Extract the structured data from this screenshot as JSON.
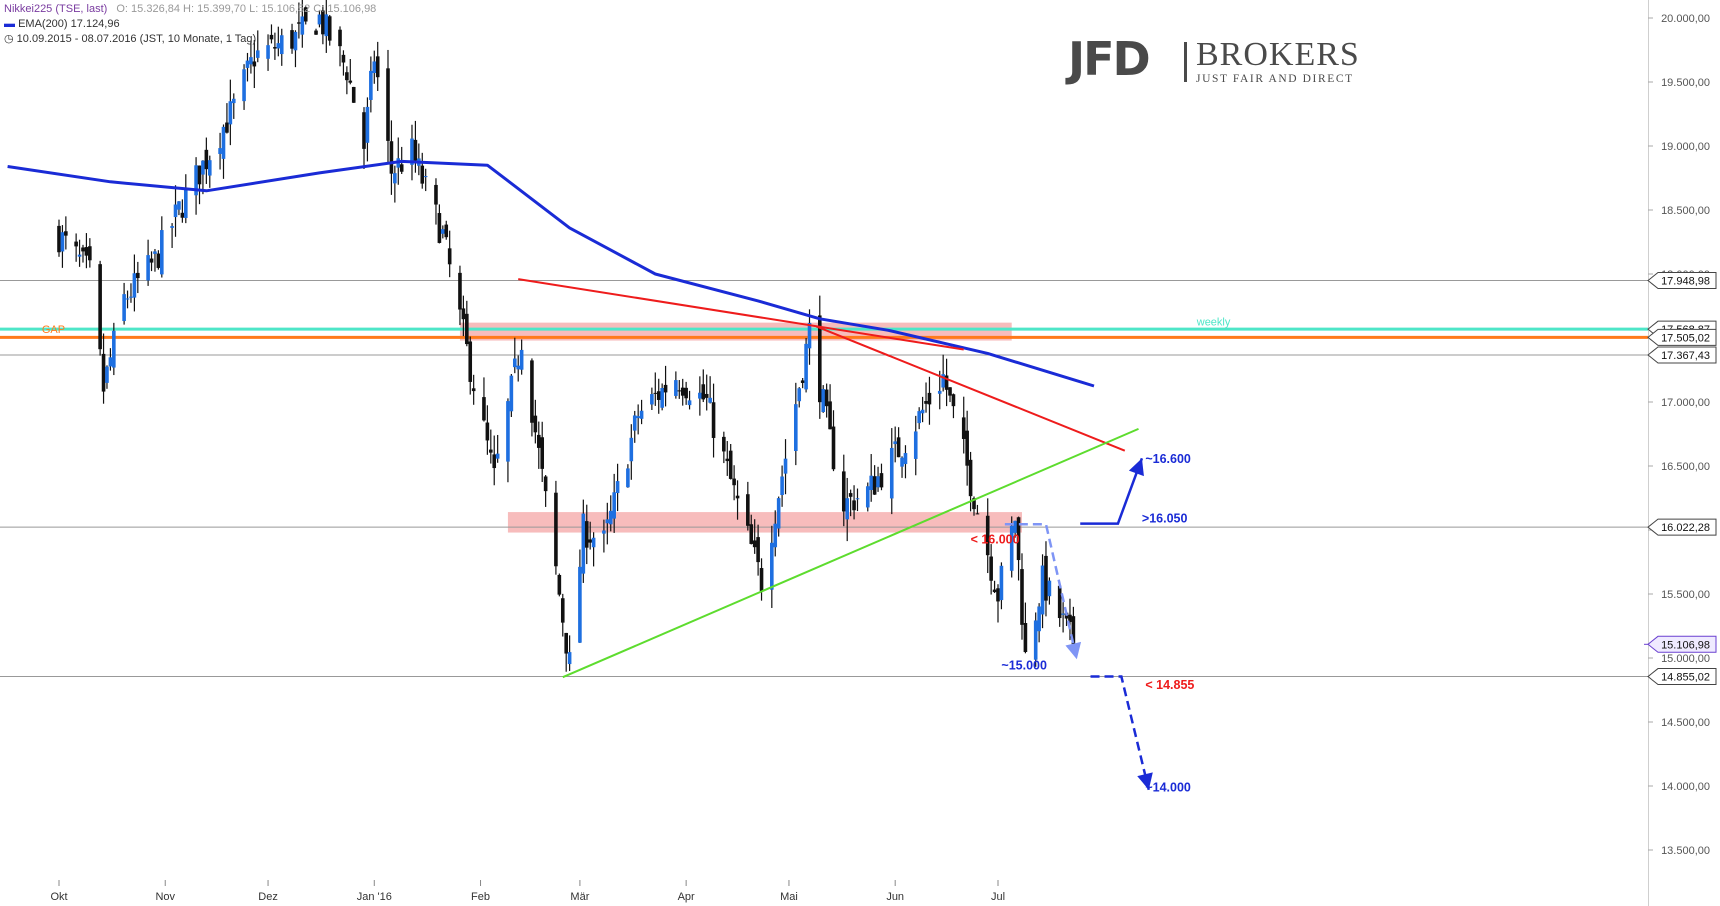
{
  "legend": {
    "instrument": "Nikkei225 (TSE, last)",
    "ohlc": "O: 15.326,84  H: 15.399,70  L: 15.106,52  C: 15.106,98",
    "ema_label": "EMA(200)",
    "ema_value": "17.124,96",
    "period": "10.09.2015 - 08.07.2016 (JST, 10 Monate, 1 Tag)"
  },
  "logo": {
    "jfd": "JFD",
    "brokers": "BROKERS",
    "tagline": "JUST FAIR AND DIRECT"
  },
  "colors": {
    "ema": "#1a2bd6",
    "trend_red": "#ee1c1c",
    "trend_green": "#5ddc2e",
    "zone_fill": "#f4a6a6",
    "weekly_line": "#4ee6c8",
    "gap_line": "#ff7a1a",
    "candle_up": "#1e6fe0",
    "candle_down": "#111111",
    "last_price": "#6a40d0"
  },
  "chart_data": {
    "type": "candlestick",
    "ylim": [
      13500,
      20100
    ],
    "y_ticks": [
      "13.500,00",
      "14.000,00",
      "14.500,00",
      "15.000,00",
      "15.500,00",
      "16.000,00",
      "16.500,00",
      "17.000,00",
      "17.500,00",
      "18.000,00",
      "18.500,00",
      "19.000,00",
      "19.500,00",
      "20.000,00"
    ],
    "y_tick_values": [
      13500,
      14000,
      14500,
      15000,
      15500,
      16000,
      16500,
      17000,
      17500,
      18000,
      18500,
      19000,
      19500,
      20000
    ],
    "x_ticks": [
      {
        "label": "Okt",
        "day": 15
      },
      {
        "label": "Nov",
        "day": 46
      },
      {
        "label": "Dez",
        "day": 76
      },
      {
        "label": "Jan '16",
        "day": 107
      },
      {
        "label": "Feb",
        "day": 138
      },
      {
        "label": "Mär",
        "day": 167
      },
      {
        "label": "Apr",
        "day": 198
      },
      {
        "label": "Mai",
        "day": 228
      },
      {
        "label": "Jun",
        "day": 259
      },
      {
        "label": "Jul",
        "day": 289
      }
    ],
    "date_range": [
      "2015-09-16",
      "2016-07-08"
    ],
    "anchors": [
      [
        "2015-09-16",
        18300
      ],
      [
        "2015-09-25",
        18000
      ],
      [
        "2015-09-29",
        17100
      ],
      [
        "2015-10-05",
        17800
      ],
      [
        "2015-10-14",
        18100
      ],
      [
        "2015-10-21",
        18500
      ],
      [
        "2015-10-29",
        18900
      ],
      [
        "2015-11-06",
        19300
      ],
      [
        "2015-11-12",
        19700
      ],
      [
        "2015-11-24",
        19850
      ],
      [
        "2015-12-01",
        20000
      ],
      [
        "2015-12-09",
        19600
      ],
      [
        "2015-12-14",
        19000
      ],
      [
        "2015-12-17",
        19700
      ],
      [
        "2015-12-22",
        18800
      ],
      [
        "2015-12-28",
        18950
      ],
      [
        "2016-01-06",
        18300
      ],
      [
        "2016-01-13",
        17400
      ],
      [
        "2016-01-21",
        16400
      ],
      [
        "2016-01-29",
        17500
      ],
      [
        "2016-02-12",
        14950
      ],
      [
        "2016-02-16",
        16000
      ],
      [
        "2016-02-22",
        15900
      ],
      [
        "2016-03-03",
        16900
      ],
      [
        "2016-03-14",
        17200
      ],
      [
        "2016-03-23",
        17000
      ],
      [
        "2016-04-01",
        16200
      ],
      [
        "2016-04-08",
        15600
      ],
      [
        "2016-04-22",
        17550
      ],
      [
        "2016-04-28",
        16700
      ],
      [
        "2016-05-02",
        16200
      ],
      [
        "2016-05-09",
        16300
      ],
      [
        "2016-05-20",
        16700
      ],
      [
        "2016-05-31",
        17200
      ],
      [
        "2016-06-06",
        16600
      ],
      [
        "2016-06-16",
        15500
      ],
      [
        "2016-06-21",
        16100
      ],
      [
        "2016-06-24",
        15000
      ],
      [
        "2016-06-29",
        15600
      ],
      [
        "2016-07-08",
        15107
      ]
    ],
    "last_close": 15106.98,
    "ema200": [
      [
        "2015-09-01",
        18840
      ],
      [
        "2015-10-01",
        18720
      ],
      [
        "2015-10-29",
        18650
      ],
      [
        "2015-12-01",
        18790
      ],
      [
        "2015-12-25",
        18880
      ],
      [
        "2016-01-19",
        18850
      ],
      [
        "2016-02-12",
        18360
      ],
      [
        "2016-03-08",
        18000
      ],
      [
        "2016-04-07",
        17790
      ],
      [
        "2016-04-25",
        17650
      ],
      [
        "2016-05-15",
        17560
      ],
      [
        "2016-06-13",
        17380
      ],
      [
        "2016-07-14",
        17124.96
      ]
    ],
    "horizontal_levels": [
      {
        "value": 17948.98,
        "label": "17.948,98",
        "color": "#999999"
      },
      {
        "value": 17568.87,
        "label": "17.568,87",
        "color": "#4ee6c8",
        "note": "weekly"
      },
      {
        "value": 17505.02,
        "label": "17.505,02",
        "color": "#ff7a1a",
        "note": "GAP"
      },
      {
        "value": 17367.43,
        "label": "17.367,43",
        "color": "#999999"
      },
      {
        "value": 16022.28,
        "label": "16.022,28",
        "color": "#999999"
      },
      {
        "value": 14855.02,
        "label": "14.855,02",
        "color": "#999999"
      }
    ],
    "zones": [
      {
        "from_date": "2016-01-11",
        "to_date": "2016-06-20",
        "low": 17480,
        "high": 17620
      },
      {
        "from_date": "2016-01-25",
        "to_date": "2016-06-23",
        "low": 15980,
        "high": 16140
      }
    ],
    "trendlines": [
      {
        "color": "#ee1c1c",
        "points": [
          [
            "2016-01-28",
            17960
          ],
          [
            "2016-06-06",
            17410
          ]
        ]
      },
      {
        "color": "#ee1c1c",
        "points": [
          [
            "2016-04-24",
            17590
          ],
          [
            "2016-07-23",
            16620
          ]
        ]
      },
      {
        "color": "#5ddc2e",
        "points": [
          [
            "2016-02-10",
            14850
          ],
          [
            "2016-07-27",
            16790
          ]
        ]
      }
    ],
    "annotations": [
      {
        "text": "weekly",
        "date": "2016-08-13",
        "value": 17630,
        "color": "#4ee6c8"
      },
      {
        "text": "GAP",
        "date": "2015-09-11",
        "value": 17570,
        "color": "#ff7a1a"
      },
      {
        "text": "< 16.000",
        "date": "2016-06-08",
        "value": 15925,
        "color": "#ee1c1c"
      },
      {
        "text": ">16.050",
        "date": "2016-07-28",
        "value": 16090,
        "color": "#1a2bd6"
      },
      {
        "text": "~16.600",
        "date": "2016-07-29",
        "value": 16555,
        "color": "#1a2bd6"
      },
      {
        "text": "~15.000",
        "date": "2016-06-17",
        "value": 14940,
        "color": "#1a2bd6"
      },
      {
        "text": "< 14.855",
        "date": "2016-07-29",
        "value": 14790,
        "color": "#ee1c1c"
      },
      {
        "text": "~14.000",
        "date": "2016-07-29",
        "value": 13990,
        "color": "#1a2bd6"
      }
    ],
    "projections": [
      {
        "style": "solid",
        "color": "#1a2bd6",
        "arrow": true,
        "points": [
          [
            "2016-07-10",
            16050
          ],
          [
            "2016-07-21",
            16050
          ],
          [
            "2016-07-28",
            16560
          ]
        ]
      },
      {
        "style": "dashed",
        "color": "#7f95f5",
        "arrow": true,
        "points": [
          [
            "2016-06-18",
            16045
          ],
          [
            "2016-06-30",
            16045
          ],
          [
            "2016-07-09",
            14990
          ]
        ]
      },
      {
        "style": "dashed",
        "color": "#1a2bd6",
        "arrow": true,
        "points": [
          [
            "2016-07-13",
            14855
          ],
          [
            "2016-07-22",
            14855
          ],
          [
            "2016-07-30",
            13970
          ]
        ]
      }
    ]
  }
}
